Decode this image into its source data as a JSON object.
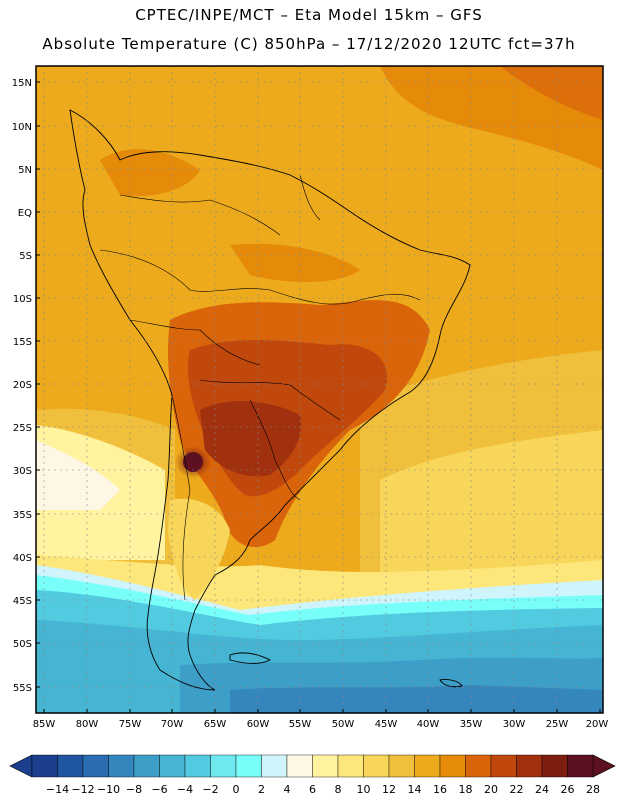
{
  "header": {
    "line1": "CPTEC/INPE/MCT –  Eta Model 15km – GFS",
    "line2": "Absolute Temperature (C) 850hPa – 17/12/2020 12UTC fct=37h"
  },
  "map": {
    "lat_labels": [
      "15N",
      "10N",
      "5N",
      "EQ",
      "5S",
      "10S",
      "15S",
      "20S",
      "25S",
      "30S",
      "35S",
      "40S",
      "45S",
      "50S",
      "55S"
    ],
    "lon_labels": [
      "85W",
      "80W",
      "75W",
      "70W",
      "65W",
      "60W",
      "55W",
      "50W",
      "45W",
      "40W",
      "35W",
      "30W",
      "25W",
      "20W"
    ],
    "lon_range": [
      -86,
      -19
    ],
    "lat_range": [
      -58,
      17
    ]
  },
  "colorbar": {
    "labels": [
      "-14",
      "-12",
      "-10",
      "-8",
      "-6",
      "-4",
      "-2",
      "0",
      "2",
      "4",
      "6",
      "8",
      "10",
      "12",
      "14",
      "16",
      "18",
      "20",
      "22",
      "24",
      "26",
      "28"
    ],
    "colors": [
      "#1b3f8c",
      "#2055a0",
      "#2a6db0",
      "#3586bd",
      "#3d9ec8",
      "#45b5d3",
      "#52cbe0",
      "#6fe8f0",
      "#79fffa",
      "#cff4fb",
      "#fff7e6",
      "#fff3a0",
      "#fde77a",
      "#f7d65a",
      "#f0c03c",
      "#ecaa1c",
      "#e68a0a",
      "#d9640a",
      "#c0480d",
      "#a0300e",
      "#7c1f10",
      "#5c1020"
    ]
  }
}
